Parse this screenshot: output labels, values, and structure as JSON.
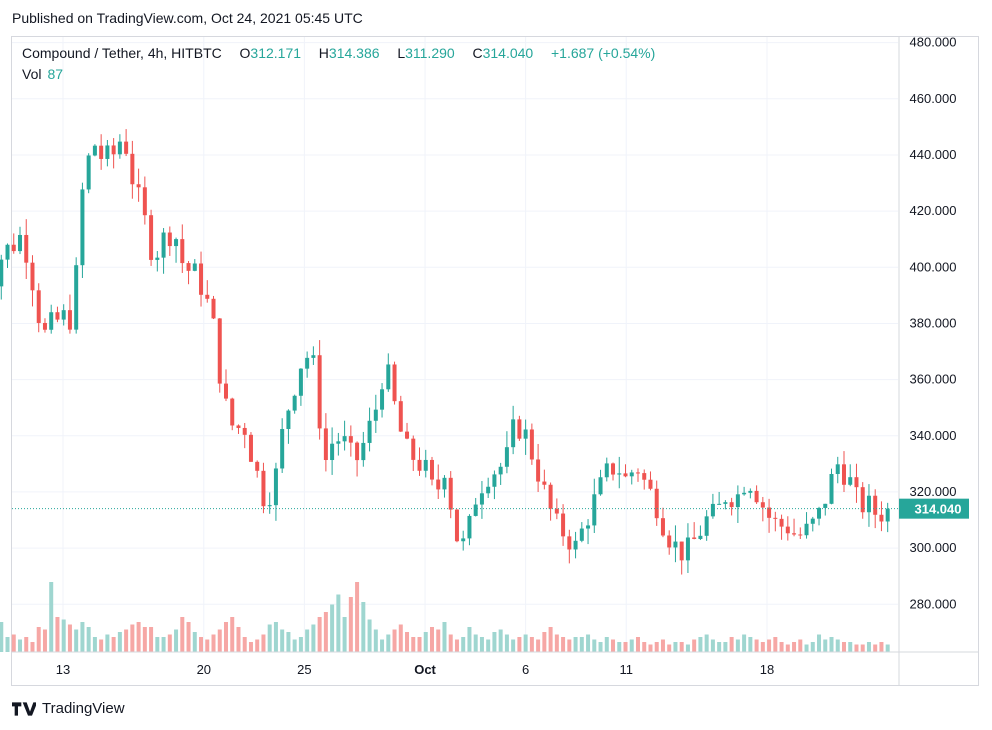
{
  "header": {
    "published": "Published on TradingView.com, Oct 24, 2021 05:45 UTC"
  },
  "legend": {
    "symbol": "Compound / Tether, 4h, HITBTC",
    "open_label": "O",
    "open": "312.171",
    "high_label": "H",
    "high": "314.386",
    "low_label": "L",
    "low": "311.290",
    "close_label": "C",
    "close": "314.040",
    "change": "+1.687 (+0.54%)",
    "vol_label": "Vol",
    "vol": "87"
  },
  "footer": {
    "brand": "TradingView"
  },
  "colors": {
    "up": "#26a69a",
    "down": "#ef5350",
    "up_vol": "#9fd6d0",
    "down_vol": "#f6a7a5",
    "grid": "#f0f3fa"
  },
  "chart_data": {
    "type": "candlestick",
    "title": "Compound / Tether, 4h, HITBTC",
    "y_ticks": [
      "280.000",
      "300.000",
      "320.000",
      "340.000",
      "360.000",
      "380.000",
      "400.000",
      "420.000",
      "440.000",
      "460.000",
      "480.000"
    ],
    "ylim": [
      263,
      482
    ],
    "x_ticks": [
      {
        "label": "13",
        "day": 13
      },
      {
        "label": "20",
        "day": 20
      },
      {
        "label": "25",
        "day": 25
      },
      {
        "label": "Oct",
        "day": 31,
        "bold": true
      },
      {
        "label": "6",
        "day": 36
      },
      {
        "label": "11",
        "day": 41
      },
      {
        "label": "18",
        "day": 48
      }
    ],
    "last_price": "314.040",
    "last_value": 314.04,
    "close_series_day": [
      9,
      400,
      9.5,
      395,
      10,
      405,
      10.5,
      408,
      11,
      412,
      11.5,
      395,
      12,
      375,
      12.5,
      380,
      13,
      382,
      13.5,
      382,
      14,
      430,
      14.5,
      445,
      15,
      438,
      15.5,
      440,
      16,
      448,
      16.5,
      430,
      17,
      418,
      17.5,
      404,
      18,
      410,
      18.5,
      414,
      19,
      400,
      19.5,
      398,
      20,
      392,
      20.5,
      378,
      21,
      352,
      21.5,
      342,
      22,
      344,
      22.5,
      330,
      23,
      318,
      23.5,
      322,
      24,
      345,
      24.5,
      358,
      25,
      370,
      25.5,
      364,
      26,
      330,
      26.5,
      340,
      27,
      337,
      27.5,
      330,
      28,
      338,
      28.5,
      348,
      29,
      366,
      29.5,
      350,
      30,
      335,
      30.5,
      332,
      31,
      328,
      31.5,
      318,
      32,
      330,
      32.5,
      305,
      33,
      300,
      33.5,
      318,
      34,
      326,
      34.5,
      328,
      35,
      330,
      35.5,
      345,
      36,
      340,
      36.5,
      330,
      37,
      318,
      37.5,
      308,
      38,
      305,
      38.5,
      300,
      39,
      310,
      39.5,
      318,
      40,
      326,
      40.5,
      330,
      41,
      324,
      41.5,
      330,
      42,
      322,
      42.5,
      316,
      43,
      306,
      43.5,
      300,
      44,
      298,
      44.5,
      304,
      45,
      310,
      45.5,
      312,
      46,
      320,
      46.5,
      318,
      47,
      326,
      47.5,
      320,
      48,
      312,
      48.5,
      308,
      49,
      308,
      49.5,
      304,
      50,
      306,
      50.5,
      310,
      51,
      320,
      51.5,
      330,
      52,
      326,
      52.5,
      316,
      53,
      315,
      53.5,
      312,
      54,
      314.04
    ],
    "volumes": [
      8,
      10,
      9,
      12,
      6,
      7,
      5,
      6,
      4,
      10,
      9,
      28,
      14,
      13,
      11,
      9,
      12,
      10,
      6,
      5,
      7,
      6,
      8,
      9,
      11,
      12,
      10,
      10,
      6,
      6,
      7,
      9,
      14,
      12,
      8,
      6,
      5,
      7,
      9,
      12,
      14,
      10,
      6,
      4,
      5,
      7,
      11,
      12,
      9,
      8,
      5,
      6,
      9,
      11,
      14,
      16,
      19,
      23,
      14,
      22,
      28,
      20,
      13,
      9,
      5,
      7,
      9,
      11,
      8,
      6,
      6,
      8,
      10,
      9,
      12,
      7,
      5,
      6,
      10,
      7,
      6,
      5,
      8,
      9,
      7,
      5,
      6,
      7,
      6,
      5,
      8,
      10,
      7,
      6,
      5,
      6,
      6,
      7,
      5,
      4,
      6,
      5,
      4,
      4,
      5,
      6,
      4,
      3,
      4,
      5,
      3,
      4,
      4,
      3,
      5,
      6,
      7,
      5,
      4,
      4,
      6,
      5,
      7,
      6,
      5,
      4,
      5,
      6,
      4,
      3,
      4,
      5,
      3,
      4,
      7,
      5,
      6,
      5,
      4,
      4,
      3,
      3,
      4,
      3,
      4,
      3
    ]
  }
}
